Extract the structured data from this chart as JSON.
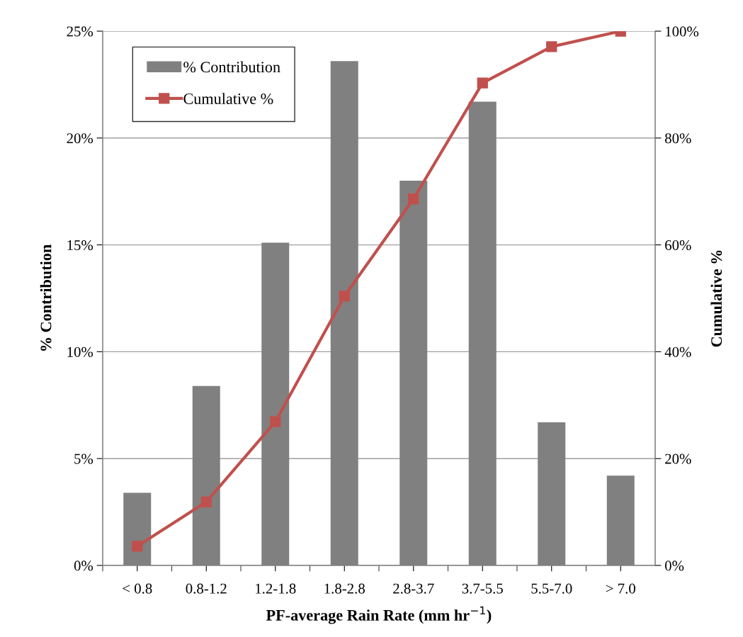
{
  "chart_data": {
    "type": "bar",
    "xlabel": "PF-average Rain Rate (mm hr$^{−1}$)",
    "ylabel": "% Contribution",
    "y2label": "Cumulative %",
    "categories": [
      "< 0.8",
      "0.8-1.2",
      "1.2-1.8",
      "1.8-2.8",
      "2.8-3.7",
      "3.7-5.5",
      "5.5-7.0",
      "> 7.0"
    ],
    "series": [
      {
        "name": "% Contribution",
        "color": "#808080",
        "values": [
          3.4,
          8.4,
          15.1,
          23.6,
          18.0,
          21.7,
          6.7,
          4.2
        ]
      },
      {
        "name": "Cumulative %",
        "type": "line",
        "axis": "y2",
        "color": "#c0504d",
        "marker": "square",
        "line_style": "solid",
        "values": [
          3.6,
          11.9,
          26.9,
          50.4,
          68.6,
          90.3,
          97.1,
          100
        ]
      }
    ],
    "ylim": [
      0,
      25
    ],
    "yticks": [
      {
        "value": 0,
        "label": "0%"
      },
      {
        "value": 5,
        "label": "5%"
      },
      {
        "value": 10,
        "label": "10%"
      },
      {
        "value": 15,
        "label": "15%"
      },
      {
        "value": 20,
        "label": "20%"
      },
      {
        "value": 25,
        "label": "25%"
      }
    ],
    "y2lim": [
      0,
      100
    ],
    "y2ticks": [
      {
        "value": 0,
        "label": "0%"
      },
      {
        "value": 20,
        "label": "20%"
      },
      {
        "value": 40,
        "label": "40%"
      },
      {
        "value": 60,
        "label": "60%"
      },
      {
        "value": 80,
        "label": "80%"
      },
      {
        "value": 100,
        "label": "100%"
      }
    ],
    "grid": "y",
    "legend": "top left"
  }
}
